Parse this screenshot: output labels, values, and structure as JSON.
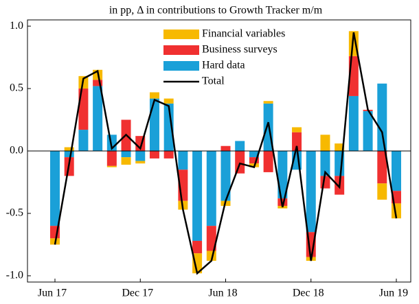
{
  "chart_data": {
    "type": "stacked_bar_line",
    "title": "in pp, Δ in contributions to Growth Tracker m/m",
    "categories": [
      "Jun 17",
      null,
      null,
      null,
      null,
      null,
      "Dec 17",
      null,
      null,
      null,
      null,
      null,
      "Jun 18",
      null,
      null,
      null,
      null,
      null,
      "Dec 18",
      null,
      null,
      null,
      null,
      null,
      "Jun 19"
    ],
    "series": [
      {
        "name": "Financial variables",
        "color": "#f7b900",
        "kind": "bar",
        "values": [
          -0.05,
          0.03,
          0.1,
          0.08,
          -0.01,
          -0.06,
          -0.02,
          0.05,
          0.04,
          -0.07,
          -0.16,
          -0.08,
          -0.04,
          0,
          -0.03,
          0.02,
          -0.02,
          0.04,
          -0.03,
          0.13,
          0.06,
          0.2,
          0,
          -0.13,
          -0.12
        ]
      },
      {
        "name": "Business surveys",
        "color": "#f03030",
        "kind": "bar",
        "values": [
          -0.1,
          -0.15,
          0.33,
          0.05,
          -0.12,
          0.25,
          0.12,
          -0.06,
          -0.06,
          -0.25,
          -0.1,
          -0.2,
          0.04,
          -0.18,
          -0.05,
          -0.17,
          -0.06,
          0.15,
          -0.2,
          -0.1,
          -0.15,
          0.32,
          0.01,
          -0.26,
          -0.1
        ]
      },
      {
        "name": "Hard data",
        "color": "#1aa0d8",
        "kind": "bar",
        "values": [
          -0.6,
          -0.05,
          0.17,
          0.52,
          0.13,
          -0.05,
          -0.08,
          0.42,
          0.38,
          -0.15,
          -0.72,
          -0.6,
          -0.4,
          0.08,
          -0.05,
          0.38,
          -0.38,
          -0.15,
          -0.65,
          -0.2,
          -0.2,
          0.44,
          0.32,
          0.54,
          -0.32
        ]
      },
      {
        "name": "Total",
        "color": "#000000",
        "kind": "line",
        "values": [
          -0.75,
          -0.1,
          0.58,
          0.64,
          0.02,
          0.13,
          0.02,
          0.41,
          0.36,
          -0.47,
          -0.98,
          -0.88,
          -0.4,
          -0.1,
          -0.13,
          0.23,
          -0.45,
          0.04,
          -0.88,
          -0.17,
          -0.29,
          0.95,
          0.33,
          0.15,
          -0.54
        ]
      }
    ],
    "ylim": [
      -1.05,
      1.05
    ],
    "yticks": [
      {
        "value": 1,
        "label": "1.0"
      },
      0.5,
      {
        "value": 0,
        "label": "0.0"
      },
      -0.5,
      {
        "value": -1,
        "label": "-1.0"
      }
    ]
  }
}
